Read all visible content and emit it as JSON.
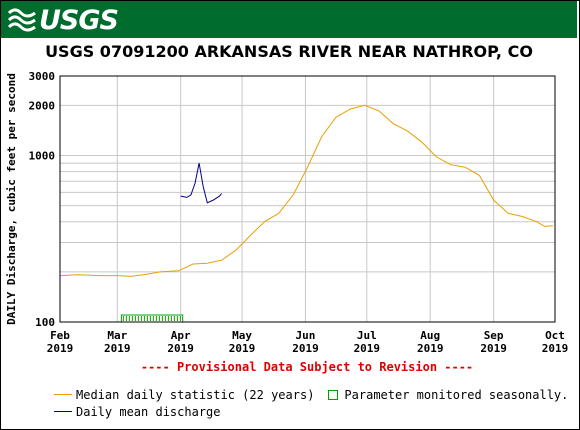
{
  "header": {
    "logo_text": "USGS",
    "logo_icon": "usgs-wave-logo-icon",
    "banner_color": "#006c2e"
  },
  "chart_data": {
    "type": "line",
    "title": "USGS 07091200 ARKANSAS RIVER NEAR NATHROP, CO",
    "ylabel": "DAILY Discharge, cubic feet per second",
    "yscale": "log",
    "ylim": [
      100,
      3000
    ],
    "ytick_labels": [
      "100",
      "1000",
      "2000",
      "3000"
    ],
    "xlim": [
      "2019-02-01",
      "2019-10-01"
    ],
    "xtick_labels": [
      {
        "month": "Feb",
        "year": "2019",
        "date": "2019-02-01"
      },
      {
        "month": "Mar",
        "year": "2019",
        "date": "2019-03-01"
      },
      {
        "month": "Apr",
        "year": "2019",
        "date": "2019-04-01"
      },
      {
        "month": "May",
        "year": "2019",
        "date": "2019-05-01"
      },
      {
        "month": "Jun",
        "year": "2019",
        "date": "2019-06-01"
      },
      {
        "month": "Jul",
        "year": "2019",
        "date": "2019-07-01"
      },
      {
        "month": "Aug",
        "year": "2019",
        "date": "2019-08-01"
      },
      {
        "month": "Sep",
        "year": "2019",
        "date": "2019-09-01"
      },
      {
        "month": "Oct",
        "year": "2019",
        "date": "2019-10-01"
      }
    ],
    "grid": true,
    "provisional_note": "---- Provisional Data Subject to Revision ----",
    "series": [
      {
        "name": "Median daily statistic (22 years)",
        "color": "#e8a000",
        "points": [
          [
            "2019-02-01",
            190
          ],
          [
            "2019-02-10",
            192
          ],
          [
            "2019-02-20",
            190
          ],
          [
            "2019-03-01",
            190
          ],
          [
            "2019-03-08",
            188
          ],
          [
            "2019-03-15",
            193
          ],
          [
            "2019-03-22",
            200
          ],
          [
            "2019-03-31",
            203
          ],
          [
            "2019-04-07",
            223
          ],
          [
            "2019-04-14",
            225
          ],
          [
            "2019-04-21",
            235
          ],
          [
            "2019-04-28",
            270
          ],
          [
            "2019-05-05",
            330
          ],
          [
            "2019-05-12",
            400
          ],
          [
            "2019-05-19",
            450
          ],
          [
            "2019-05-26",
            580
          ],
          [
            "2019-06-02",
            850
          ],
          [
            "2019-06-09",
            1300
          ],
          [
            "2019-06-16",
            1700
          ],
          [
            "2019-06-23",
            1900
          ],
          [
            "2019-06-30",
            2000
          ],
          [
            "2019-07-07",
            1850
          ],
          [
            "2019-07-14",
            1550
          ],
          [
            "2019-07-21",
            1400
          ],
          [
            "2019-07-28",
            1200
          ],
          [
            "2019-08-04",
            980
          ],
          [
            "2019-08-11",
            880
          ],
          [
            "2019-08-18",
            850
          ],
          [
            "2019-08-25",
            760
          ],
          [
            "2019-09-01",
            540
          ],
          [
            "2019-09-08",
            450
          ],
          [
            "2019-09-15",
            430
          ],
          [
            "2019-09-22",
            400
          ],
          [
            "2019-09-26",
            375
          ],
          [
            "2019-09-30",
            378
          ]
        ]
      },
      {
        "name": "Daily mean discharge",
        "color": "#00008b",
        "points": [
          [
            "2019-04-01",
            570
          ],
          [
            "2019-04-04",
            560
          ],
          [
            "2019-04-06",
            580
          ],
          [
            "2019-04-08",
            680
          ],
          [
            "2019-04-10",
            900
          ],
          [
            "2019-04-12",
            650
          ],
          [
            "2019-04-14",
            520
          ],
          [
            "2019-04-17",
            540
          ],
          [
            "2019-04-20",
            570
          ],
          [
            "2019-04-21",
            590
          ]
        ]
      }
    ],
    "seasonal_bar": {
      "name": "Parameter monitored seasonally.",
      "color": "#00a000",
      "start": "2019-03-03",
      "end": "2019-04-02"
    }
  }
}
